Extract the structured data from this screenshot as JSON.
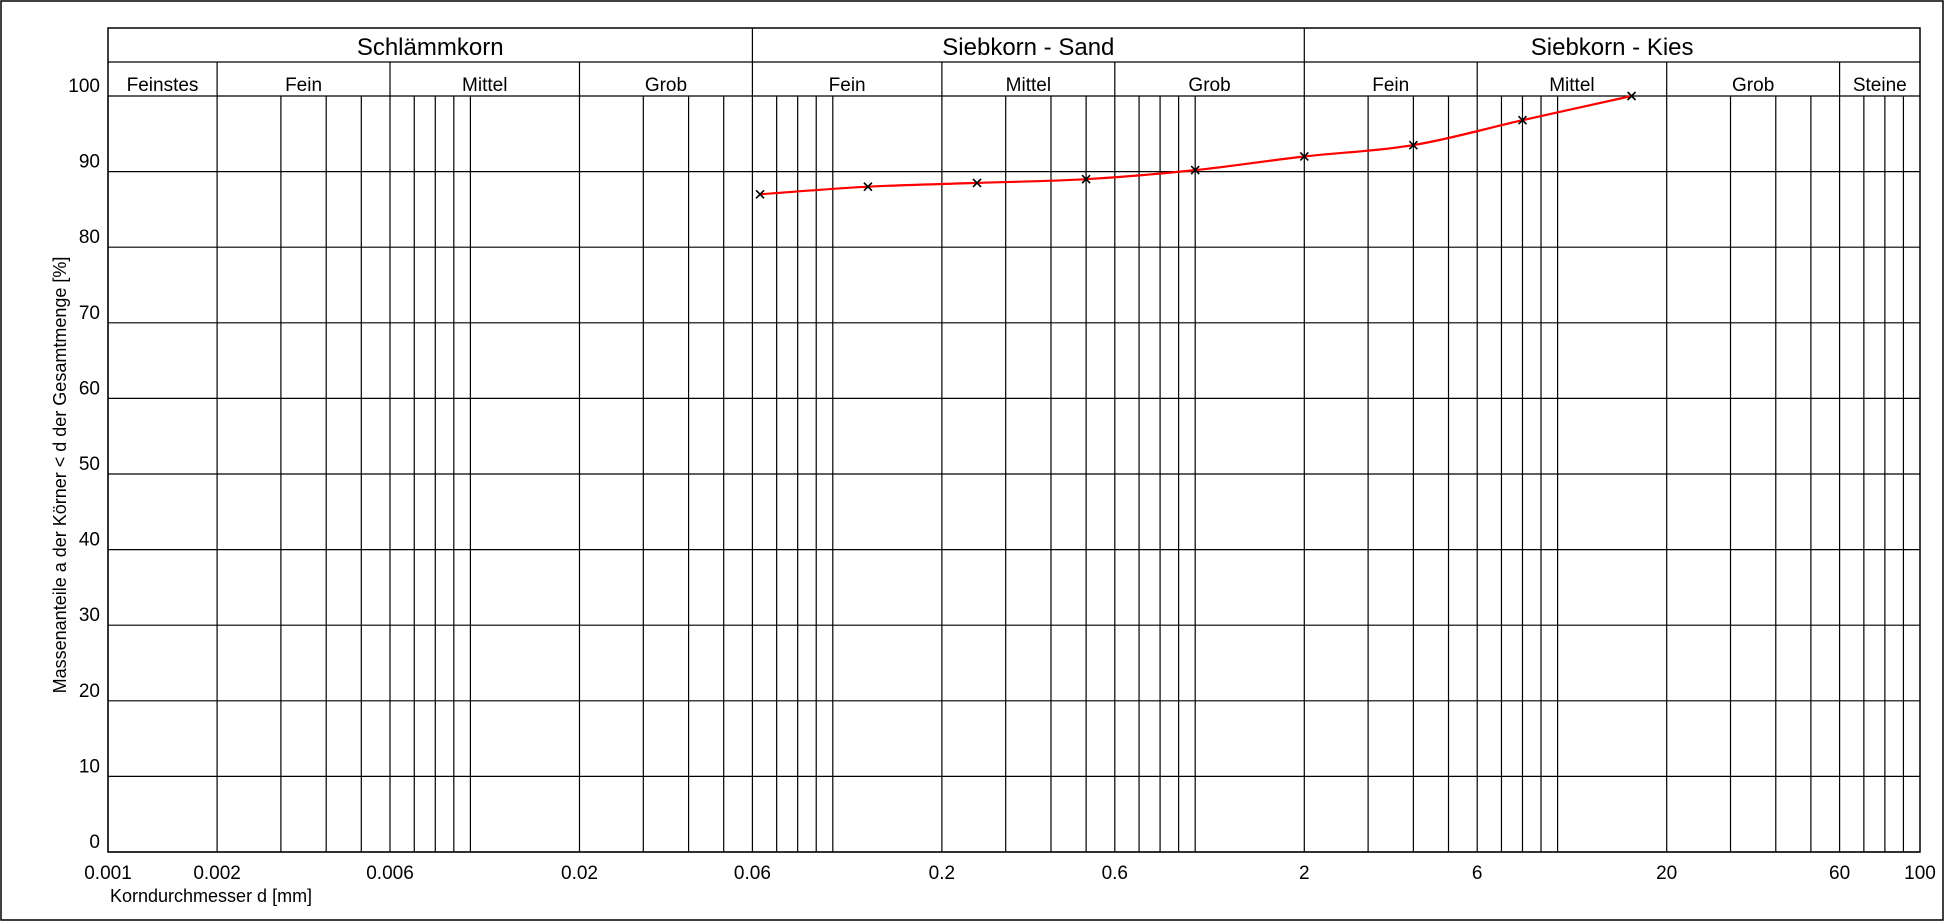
{
  "chart_data": {
    "type": "line",
    "title": "",
    "xlabel": "Korndurchmesser d [mm]",
    "ylabel": "Massenanteile a der Körner < d der Gesamtmenge [%]",
    "x_scale": "log",
    "xlim": [
      0.001,
      100
    ],
    "ylim": [
      0,
      100
    ],
    "x_ticks": [
      0.001,
      0.002,
      0.006,
      0.02,
      0.06,
      0.2,
      0.6,
      2,
      6,
      20,
      60,
      100
    ],
    "x_tick_labels": [
      "0.001",
      "0.002",
      "0.006",
      "0.02",
      "0.06",
      "0.2",
      "0.6",
      "2",
      "6",
      "20",
      "60",
      "100"
    ],
    "y_ticks": [
      0,
      10,
      20,
      30,
      40,
      50,
      60,
      70,
      80,
      90,
      100
    ],
    "y_tick_labels": [
      "0",
      "10",
      "20",
      "30",
      "40",
      "50",
      "60",
      "70",
      "80",
      "90",
      "100"
    ],
    "grid": true,
    "header_upper": [
      {
        "label": "Schlämmkorn",
        "from": 0.001,
        "to": 0.06
      },
      {
        "label": "Siebkorn - Sand",
        "from": 0.06,
        "to": 2
      },
      {
        "label": "Siebkorn - Kies",
        "from": 2,
        "to": 100
      }
    ],
    "header_lower": [
      {
        "label": "Feinstes",
        "from": 0.001,
        "to": 0.002
      },
      {
        "label": "Fein",
        "from": 0.002,
        "to": 0.006
      },
      {
        "label": "Mittel",
        "from": 0.006,
        "to": 0.02
      },
      {
        "label": "Grob",
        "from": 0.02,
        "to": 0.06
      },
      {
        "label": "Fein",
        "from": 0.06,
        "to": 0.2
      },
      {
        "label": "Mittel",
        "from": 0.2,
        "to": 0.6
      },
      {
        "label": "Grob",
        "from": 0.6,
        "to": 2
      },
      {
        "label": "Fein",
        "from": 2,
        "to": 6
      },
      {
        "label": "Mittel",
        "from": 6,
        "to": 20
      },
      {
        "label": "Grob",
        "from": 20,
        "to": 60
      },
      {
        "label": "Steine",
        "from": 60,
        "to": 100
      }
    ],
    "series": [
      {
        "color": "#ff0000",
        "marker_color": "#000000",
        "points": [
          {
            "x": 0.063,
            "y": 87.0
          },
          {
            "x": 0.125,
            "y": 88.0
          },
          {
            "x": 0.25,
            "y": 88.5
          },
          {
            "x": 0.5,
            "y": 89.0
          },
          {
            "x": 1.0,
            "y": 90.2
          },
          {
            "x": 2.0,
            "y": 92.0
          },
          {
            "x": 4.0,
            "y": 93.5
          },
          {
            "x": 8.0,
            "y": 96.8
          },
          {
            "x": 16.0,
            "y": 100.0
          }
        ]
      }
    ]
  }
}
